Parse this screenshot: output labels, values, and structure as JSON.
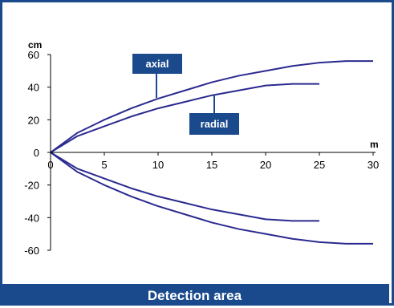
{
  "colors": {
    "frame": "#1a4a8c",
    "curve": "#2b2a8f",
    "label_box": "#1a4a8c"
  },
  "footer": {
    "title": "Detection area"
  },
  "chart_data": {
    "type": "line",
    "title": "",
    "xlabel": "m",
    "ylabel": "cm",
    "xlim": [
      0,
      30
    ],
    "ylim": [
      -60,
      60
    ],
    "x_ticks": [
      0,
      5,
      10,
      15,
      20,
      25,
      30
    ],
    "y_ticks": [
      60,
      40,
      20,
      0,
      -20,
      -40,
      -60
    ],
    "grid": false,
    "annotations": [
      "axial",
      "radial"
    ],
    "series": [
      {
        "name": "axial",
        "x": [
          0,
          2.5,
          5,
          7.5,
          10,
          12.5,
          15,
          17.5,
          20,
          22.5,
          25,
          27.5,
          30
        ],
        "y": [
          0,
          12,
          20,
          27,
          33,
          38,
          43,
          47,
          50,
          53,
          55,
          56,
          56
        ]
      },
      {
        "name": "axial",
        "x": [
          0,
          2.5,
          5,
          7.5,
          10,
          12.5,
          15,
          17.5,
          20,
          22.5,
          25,
          27.5,
          30
        ],
        "y": [
          0,
          -12,
          -20,
          -27,
          -33,
          -38,
          -43,
          -47,
          -50,
          -53,
          -55,
          -56,
          -56
        ]
      },
      {
        "name": "radial",
        "x": [
          0,
          2.5,
          5,
          7.5,
          10,
          12.5,
          15,
          17.5,
          20,
          22.5,
          25
        ],
        "y": [
          0,
          10,
          16,
          22,
          27,
          31,
          35,
          38,
          41,
          42,
          42
        ]
      },
      {
        "name": "radial",
        "x": [
          0,
          2.5,
          5,
          7.5,
          10,
          12.5,
          15,
          17.5,
          20,
          22.5,
          25
        ],
        "y": [
          0,
          -10,
          -16,
          -22,
          -27,
          -31,
          -35,
          -38,
          -41,
          -42,
          -42
        ]
      }
    ]
  }
}
